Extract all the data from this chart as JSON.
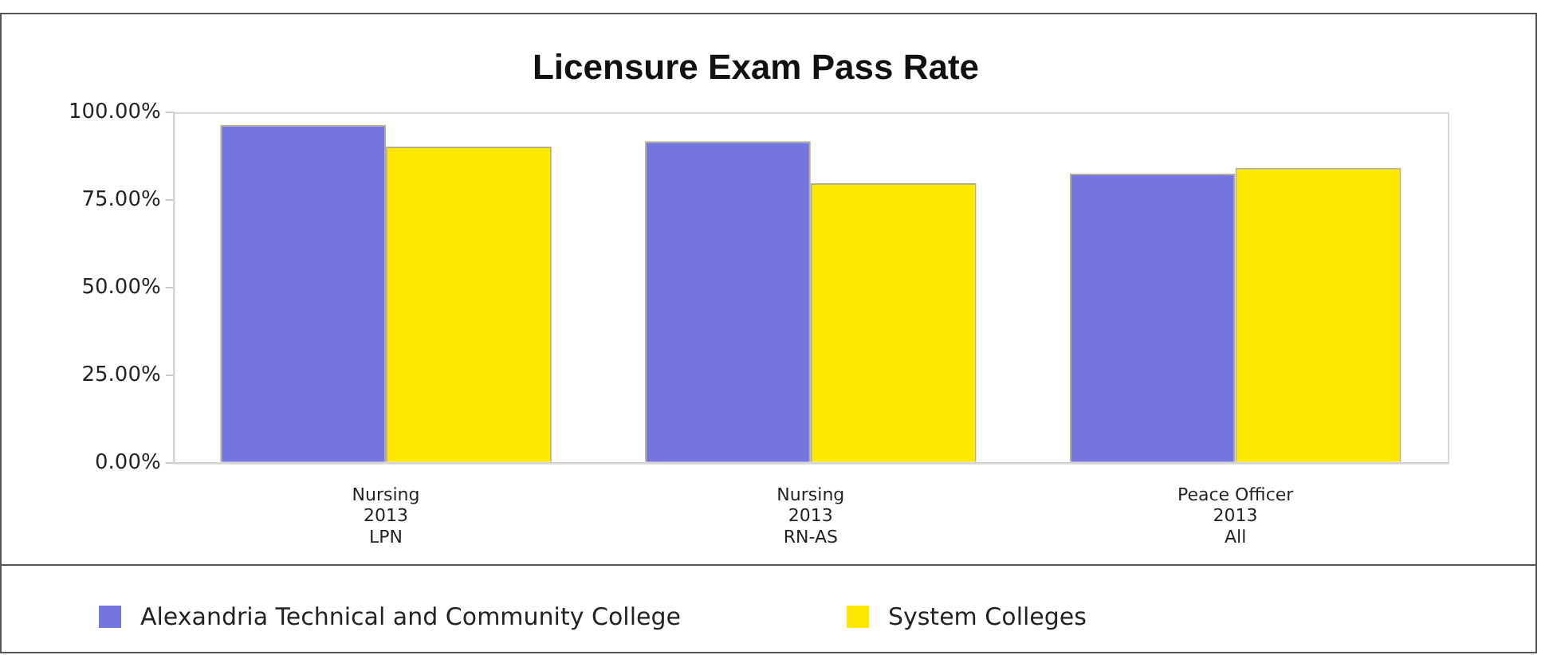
{
  "chart_data": {
    "type": "bar",
    "title": "Licensure Exam Pass Rate",
    "categories": [
      "Nursing\n2013\nLPN",
      "Nursing\n2013\nRN-AS",
      "Peace Officer\n2013\nAll"
    ],
    "series": [
      {
        "name": "Alexandria Technical and Community College",
        "color": "#7575e0",
        "values": [
          96.4,
          91.7,
          82.5
        ]
      },
      {
        "name": "System Colleges",
        "color": "#ffe800",
        "values": [
          90.2,
          79.7,
          84.1
        ]
      }
    ],
    "ylim": [
      0,
      100
    ],
    "yticks": [
      {
        "value": 0,
        "label": "0.00%"
      },
      {
        "value": 25,
        "label": "25.00%"
      },
      {
        "value": 50,
        "label": "50.00%"
      },
      {
        "value": 75,
        "label": "75.00%"
      },
      {
        "value": 100,
        "label": "100.00%"
      }
    ],
    "grid": false,
    "legend": "bottom"
  }
}
